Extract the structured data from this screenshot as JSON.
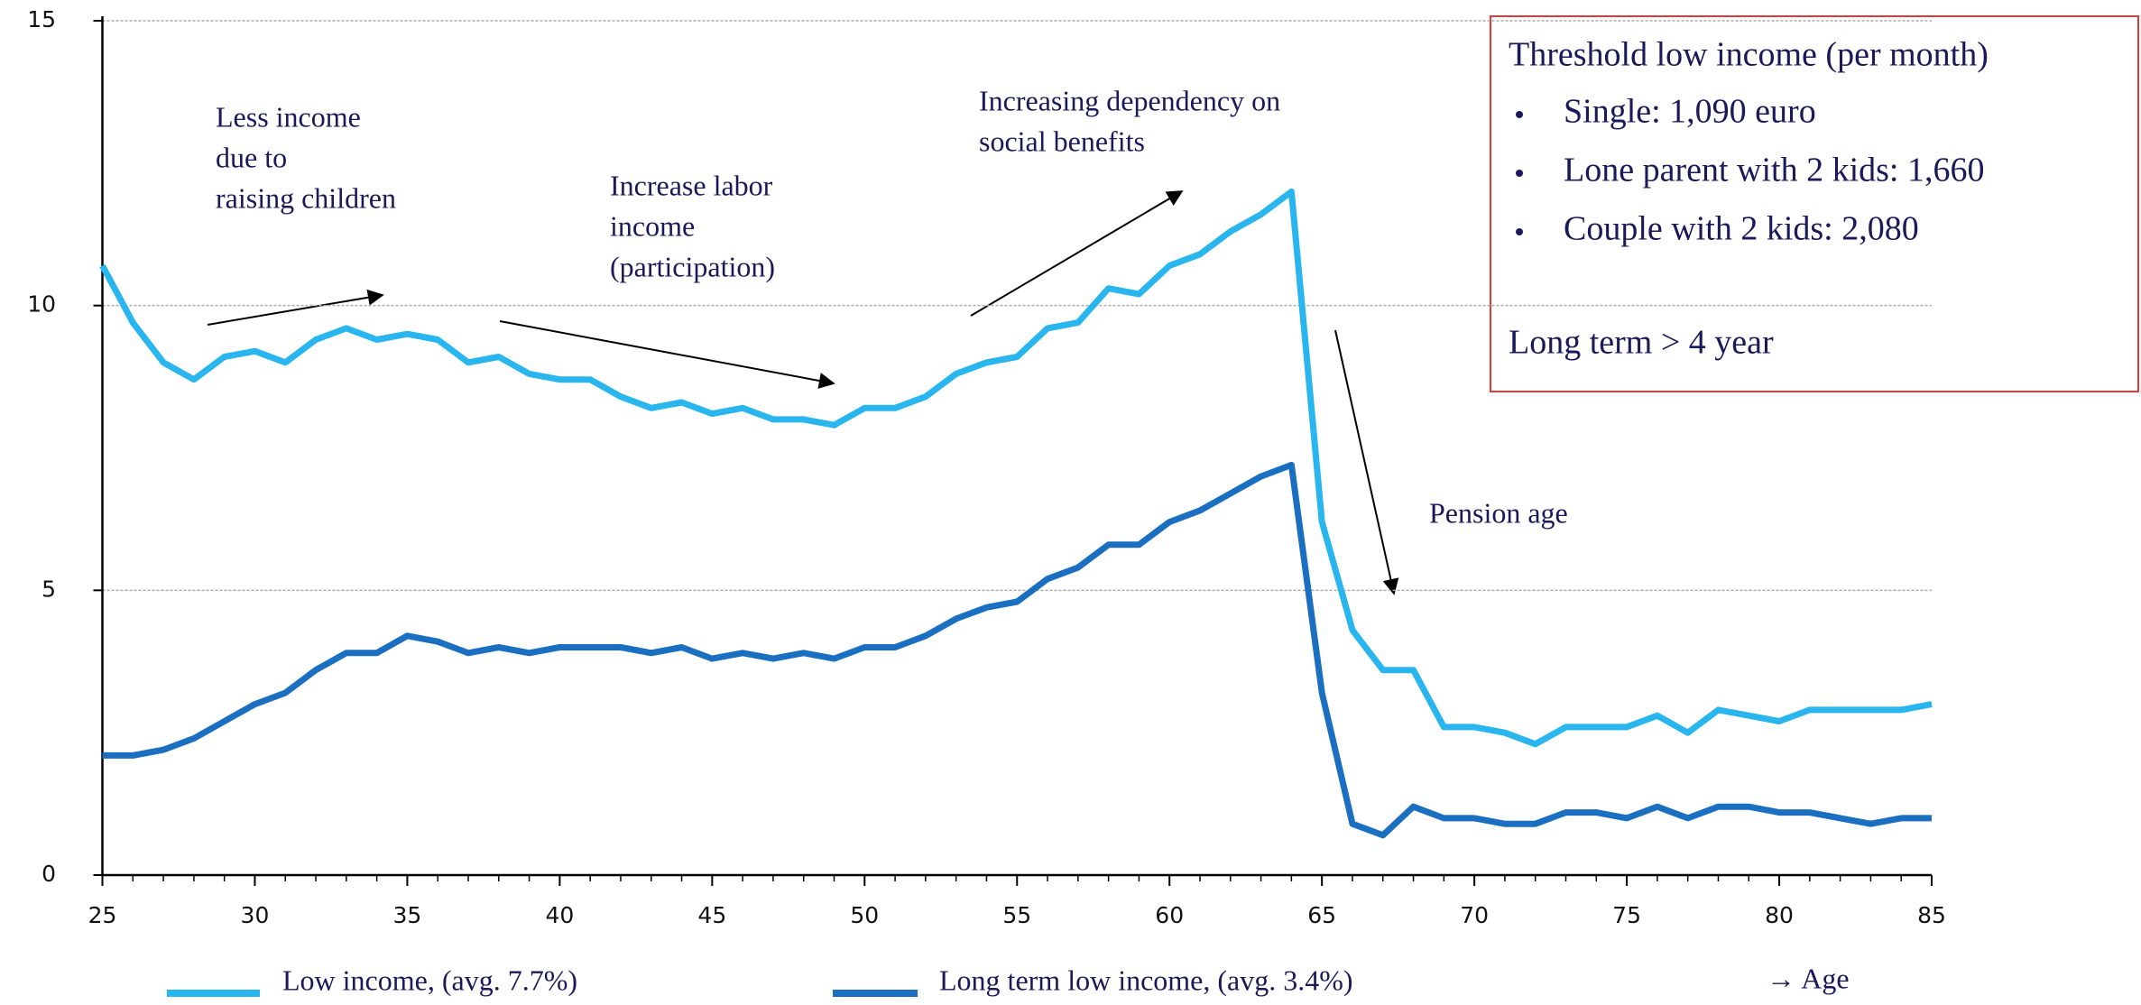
{
  "chart_data": {
    "type": "line",
    "x": [
      25,
      26,
      27,
      28,
      29,
      30,
      31,
      32,
      33,
      34,
      35,
      36,
      37,
      38,
      39,
      40,
      41,
      42,
      43,
      44,
      45,
      46,
      47,
      48,
      49,
      50,
      51,
      52,
      53,
      54,
      55,
      56,
      57,
      58,
      59,
      60,
      61,
      62,
      63,
      64,
      65,
      66,
      67,
      68,
      69,
      70,
      71,
      72,
      73,
      74,
      75,
      76,
      77,
      78,
      79,
      80,
      81,
      82,
      83,
      84,
      85
    ],
    "series": [
      {
        "name": "Low income, (avg. 7.7%)",
        "color": "#29b5ee",
        "values": [
          10.7,
          9.7,
          9.0,
          8.7,
          9.1,
          9.2,
          9.0,
          9.4,
          9.6,
          9.4,
          9.5,
          9.4,
          9.0,
          9.1,
          8.8,
          8.7,
          8.7,
          8.4,
          8.2,
          8.3,
          8.1,
          8.2,
          8.0,
          8.0,
          7.9,
          8.2,
          8.2,
          8.4,
          8.8,
          9.0,
          9.1,
          9.6,
          9.7,
          10.3,
          10.2,
          10.7,
          10.9,
          11.3,
          11.6,
          12.0,
          6.2,
          4.3,
          3.6,
          3.6,
          2.6,
          2.6,
          2.5,
          2.3,
          2.6,
          2.6,
          2.6,
          2.8,
          2.5,
          2.9,
          2.8,
          2.7,
          2.9,
          2.9,
          2.9,
          2.9,
          3.0
        ]
      },
      {
        "name": "Long term low income, (avg. 3.4%)",
        "color": "#1b6fc1",
        "values": [
          2.1,
          2.1,
          2.2,
          2.4,
          2.7,
          3.0,
          3.2,
          3.6,
          3.9,
          3.9,
          4.2,
          4.1,
          3.9,
          4.0,
          3.9,
          4.0,
          4.0,
          4.0,
          3.9,
          4.0,
          3.8,
          3.9,
          3.8,
          3.9,
          3.8,
          4.0,
          4.0,
          4.2,
          4.5,
          4.7,
          4.8,
          5.2,
          5.4,
          5.8,
          5.8,
          6.2,
          6.4,
          6.7,
          7.0,
          7.2,
          3.2,
          0.9,
          0.7,
          1.2,
          1.0,
          1.0,
          0.9,
          0.9,
          1.1,
          1.1,
          1.0,
          1.2,
          1.0,
          1.2,
          1.2,
          1.1,
          1.1,
          1.0,
          0.9,
          1.0,
          1.0
        ]
      }
    ],
    "xlim": [
      25,
      85
    ],
    "xticks": [
      25,
      30,
      35,
      40,
      45,
      50,
      55,
      60,
      65,
      70,
      75,
      80,
      85
    ],
    "ylim": [
      0,
      15
    ],
    "yticks": [
      0,
      5,
      10,
      15
    ],
    "grid": true,
    "x_label": "→ Age",
    "annotations": [
      {
        "lines": [
          "Less income",
          "due to",
          "raising children"
        ]
      },
      {
        "lines": [
          "Increase labor",
          "income",
          "(participation)"
        ]
      },
      {
        "lines": [
          "Increasing dependency on",
          "social benefits"
        ]
      },
      {
        "lines": [
          "Pension age"
        ]
      }
    ],
    "info_box": {
      "title": "Threshold low income (per month)",
      "items": [
        "Single: 1,090 euro",
        "Lone parent with 2 kids: 1,660",
        "Couple with 2 kids: 2,080"
      ],
      "note": "Long term > 4 year"
    }
  }
}
